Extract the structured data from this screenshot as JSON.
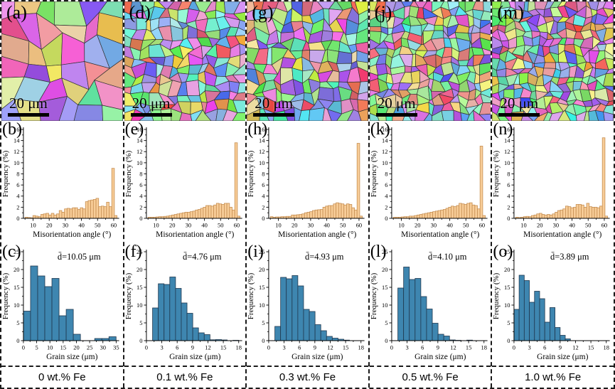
{
  "figure": {
    "colors": {
      "angle_bar_fill": "#f8cd98",
      "angle_bar_stroke": "#c58e52",
      "grain_bar_fill": "#3e86b0",
      "grain_bar_stroke": "#20384f",
      "axis": "#000000",
      "scale_bar": "#000000",
      "border_dash": "#1a1a1a"
    },
    "columns": [
      {
        "label": "0 wt.% Fe",
        "map": {
          "panel": "(a)",
          "scale_bar": "20 μm"
        }
      },
      {
        "label": "0.1 wt.% Fe",
        "map": {
          "panel": "(d)",
          "scale_bar": "20 μm"
        }
      },
      {
        "label": "0.3 wt.% Fe",
        "map": {
          "panel": "(g)",
          "scale_bar": "20 μm"
        }
      },
      {
        "label": "0.5 wt.% Fe",
        "map": {
          "panel": "(j)",
          "scale_bar": "20 μm"
        }
      },
      {
        "label": "1.0 wt.% Fe",
        "map": {
          "panel": "(m)",
          "scale_bar": "20 μm"
        }
      }
    ]
  },
  "chart_data": [
    {
      "panel": "(b)",
      "type": "bar",
      "column": "0 wt.% Fe",
      "title": "",
      "xlabel": "Misorientation angle (°)",
      "ylabel": "Frequency (%)",
      "xlim": [
        4,
        62.5
      ],
      "ylim": [
        0,
        16
      ],
      "xticks": [
        10,
        20,
        30,
        40,
        50,
        60
      ],
      "yticks": [
        0,
        2,
        4,
        6,
        8,
        10,
        12,
        14,
        16
      ],
      "bin_start": 5,
      "bin_width": 1.63,
      "values": [
        0.2,
        0.15,
        0.1,
        0.5,
        0.4,
        0.3,
        0.7,
        0.8,
        0.9,
        0.6,
        0.9,
        0.6,
        0.8,
        1.4,
        1.1,
        1.7,
        1.8,
        1.7,
        1.9,
        1.9,
        1.6,
        1.9,
        1.7,
        3.0,
        3.2,
        3.3,
        3.4,
        3.6,
        2.1,
        2.2,
        2.1,
        2.9,
        2.1,
        9.0,
        0.5
      ]
    },
    {
      "panel": "(c)",
      "type": "bar",
      "column": "0 wt.% Fe",
      "title": "",
      "xlabel": "Grain size (μm)",
      "ylabel": "Frequency (%)",
      "xlim": [
        0,
        35.6
      ],
      "ylim": [
        0,
        25
      ],
      "xticks": [
        0,
        5,
        10,
        15,
        20,
        25,
        30,
        35
      ],
      "yticks": [
        0,
        5,
        10,
        15,
        20,
        25
      ],
      "bin_start": 0,
      "bin_width": 2.69,
      "mean_d_um": 10.05,
      "annotation": "d̄=10.05 μm",
      "values": [
        8.3,
        21.0,
        18.2,
        15.2,
        17.5,
        7.0,
        8.8,
        1.8,
        0,
        0,
        0.6,
        0.6,
        1.1
      ]
    },
    {
      "panel": "(e)",
      "type": "bar",
      "column": "0.1 wt.% Fe",
      "title": "",
      "xlabel": "Misorientation angle (°)",
      "ylabel": "Frequency (%)",
      "xlim": [
        4,
        62.5
      ],
      "ylim": [
        0,
        16
      ],
      "xticks": [
        10,
        20,
        30,
        40,
        50,
        60
      ],
      "yticks": [
        0,
        2,
        4,
        6,
        8,
        10,
        12,
        14,
        16
      ],
      "bin_start": 5,
      "bin_width": 1.63,
      "values": [
        0.2,
        0.2,
        0.2,
        0.25,
        0.3,
        0.3,
        0.35,
        0.4,
        0.5,
        0.6,
        0.7,
        0.8,
        0.9,
        1.0,
        1.1,
        1.1,
        1.2,
        1.3,
        1.5,
        1.6,
        1.8,
        2.0,
        2.3,
        2.3,
        2.2,
        2.4,
        2.7,
        2.6,
        2.5,
        2.7,
        2.7,
        2.0,
        1.5,
        13.6,
        0.4
      ]
    },
    {
      "panel": "(f)",
      "type": "bar",
      "column": "0.1 wt.% Fe",
      "title": "",
      "xlabel": "Grain size (μm)",
      "ylabel": "Frequency (%)",
      "xlim": [
        0,
        18.4
      ],
      "ylim": [
        0,
        25
      ],
      "xticks": [
        0,
        3,
        6,
        9,
        12,
        15,
        18
      ],
      "yticks": [
        0,
        5,
        10,
        15,
        20,
        25
      ],
      "bin_start": 1.2,
      "bin_width": 1.12,
      "mean_d_um": 4.76,
      "annotation": "d̄=4.76 μm",
      "values": [
        9.2,
        16.0,
        15.8,
        17.9,
        14.7,
        10.6,
        7.7,
        3.6,
        2.2,
        1.7,
        0.25,
        0.3,
        0.2,
        0,
        0.1
      ]
    },
    {
      "panel": "(h)",
      "type": "bar",
      "column": "0.3 wt.% Fe",
      "title": "",
      "xlabel": "Misorientation angle (°)",
      "ylabel": "Frequency (%)",
      "xlim": [
        4,
        62.5
      ],
      "ylim": [
        0,
        16
      ],
      "xticks": [
        10,
        20,
        30,
        40,
        50,
        60
      ],
      "yticks": [
        0,
        2,
        4,
        6,
        8,
        10,
        12,
        14,
        16
      ],
      "bin_start": 5,
      "bin_width": 1.63,
      "values": [
        0.3,
        0.2,
        0.25,
        0.25,
        0.3,
        0.3,
        0.35,
        0.35,
        0.6,
        0.6,
        0.65,
        0.7,
        0.8,
        1.0,
        1.1,
        1.2,
        1.4,
        1.5,
        1.55,
        1.6,
        2.0,
        2.2,
        2.3,
        2.3,
        2.6,
        2.8,
        2.7,
        2.6,
        2.4,
        2.6,
        2.5,
        1.9,
        1.5,
        13.5,
        0.4
      ]
    },
    {
      "panel": "(i)",
      "type": "bar",
      "column": "0.3 wt.% Fe",
      "title": "",
      "xlabel": "Grain size (μm)",
      "ylabel": "Frequency (%)",
      "xlim": [
        0,
        18.4
      ],
      "ylim": [
        0,
        25
      ],
      "xticks": [
        0,
        3,
        6,
        9,
        12,
        15,
        18
      ],
      "yticks": [
        0,
        5,
        10,
        15,
        20,
        25
      ],
      "bin_start": 1.2,
      "bin_width": 1.12,
      "mean_d_um": 4.93,
      "annotation": "d̄=4.93 μm",
      "values": [
        4.0,
        17.8,
        17.4,
        18.3,
        15.4,
        8.8,
        8.2,
        4.5,
        2.8,
        1.2,
        0.7,
        0.4,
        0.15,
        0,
        0
      ]
    },
    {
      "panel": "(k)",
      "type": "bar",
      "column": "0.5 wt.% Fe",
      "title": "",
      "xlabel": "Misorientation angle (°)",
      "ylabel": "Frequency (%)",
      "xlim": [
        4,
        62.5
      ],
      "ylim": [
        0,
        16
      ],
      "xticks": [
        10,
        20,
        30,
        40,
        50,
        60
      ],
      "yticks": [
        0,
        2,
        4,
        6,
        8,
        10,
        12,
        14,
        16
      ],
      "bin_start": 5,
      "bin_width": 1.63,
      "values": [
        0.2,
        0.2,
        0.2,
        0.25,
        0.3,
        0.3,
        0.4,
        0.4,
        0.5,
        0.6,
        0.7,
        0.8,
        0.9,
        1.0,
        1.1,
        1.2,
        1.3,
        1.4,
        1.5,
        1.6,
        1.8,
        2.0,
        2.2,
        2.1,
        2.3,
        2.7,
        2.6,
        2.5,
        2.7,
        2.8,
        2.4,
        2.3,
        1.7,
        13.0,
        0.5
      ]
    },
    {
      "panel": "(l)",
      "type": "bar",
      "column": "0.5 wt.% Fe",
      "title": "",
      "xlabel": "Grain size (μm)",
      "ylabel": "Frequency (%)",
      "xlim": [
        0,
        18.4
      ],
      "ylim": [
        0,
        25
      ],
      "xticks": [
        0,
        3,
        6,
        9,
        12,
        15,
        18
      ],
      "yticks": [
        0,
        5,
        10,
        15,
        20,
        25
      ],
      "bin_start": 1.2,
      "bin_width": 1.12,
      "mean_d_um": 4.1,
      "annotation": "d̄=4.10 μm",
      "values": [
        14.8,
        20.7,
        17.2,
        17.5,
        12.4,
        8.9,
        4.9,
        1.8,
        1.3,
        0.2,
        0.1,
        0,
        0.15,
        0,
        0
      ]
    },
    {
      "panel": "(n)",
      "type": "bar",
      "column": "1.0 wt.% Fe",
      "title": "",
      "xlabel": "Misorientation angle (°)",
      "ylabel": "Frequency (%)",
      "xlim": [
        4,
        62.5
      ],
      "ylim": [
        0,
        16
      ],
      "xticks": [
        10,
        20,
        30,
        40,
        50,
        60
      ],
      "yticks": [
        0,
        2,
        4,
        6,
        8,
        10,
        12,
        14,
        16
      ],
      "bin_start": 5,
      "bin_width": 1.63,
      "values": [
        0.2,
        0.15,
        0.2,
        0.3,
        0.35,
        0.3,
        0.5,
        0.6,
        0.8,
        0.9,
        0.7,
        0.6,
        0.7,
        0.6,
        0.8,
        1.1,
        1.4,
        1.5,
        1.7,
        2.2,
        2.1,
        1.9,
        2.0,
        2.5,
        2.5,
        2.4,
        2.0,
        2.7,
        2.1,
        2.0,
        2.0,
        1.9,
        2.2,
        14.5,
        0.4
      ]
    },
    {
      "panel": "(o)",
      "type": "bar",
      "column": "1.0 wt.% Fe",
      "title": "",
      "xlabel": "Grain size (μm)",
      "ylabel": "Frequency (%)",
      "xlim": [
        0,
        18.4
      ],
      "ylim": [
        0,
        25
      ],
      "xticks": [
        0,
        3,
        6,
        9,
        12,
        15,
        18
      ],
      "yticks": [
        0,
        5,
        10,
        15,
        20,
        25
      ],
      "bin_start": 0,
      "bin_width": 1.0,
      "mean_d_um": 3.89,
      "annotation": "d̄=3.89 μm",
      "values": [
        8.8,
        18.4,
        16.9,
        10.8,
        13.9,
        11.8,
        5.2,
        9.3,
        3.7,
        1.5,
        0.5
      ]
    }
  ]
}
